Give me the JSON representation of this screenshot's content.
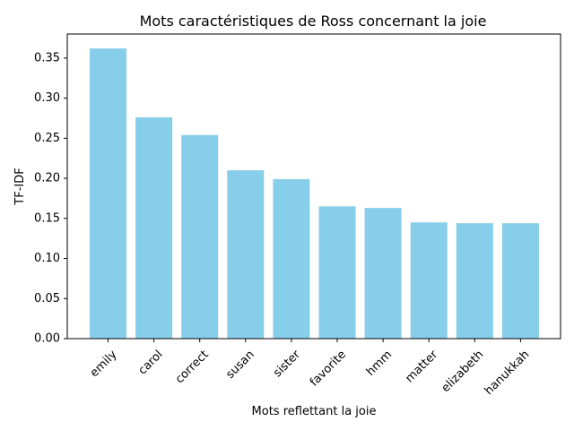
{
  "chart_data": {
    "type": "bar",
    "title": "Mots caractéristiques de Ross concernant la joie",
    "xlabel": "Mots reflettant la joie",
    "ylabel": "TF-IDF",
    "categories": [
      "emily",
      "carol",
      "correct",
      "susan",
      "sister",
      "favorite",
      "hmm",
      "matter",
      "elizabeth",
      "hanukkah"
    ],
    "values": [
      0.362,
      0.276,
      0.254,
      0.21,
      0.199,
      0.165,
      0.163,
      0.145,
      0.144,
      0.144
    ],
    "ylim": [
      0,
      0.38
    ],
    "yticks": [
      0.0,
      0.05,
      0.1,
      0.15,
      0.2,
      0.25,
      0.3,
      0.35
    ],
    "bar_color": "#87CEEB",
    "grid": false,
    "legend": "none"
  }
}
